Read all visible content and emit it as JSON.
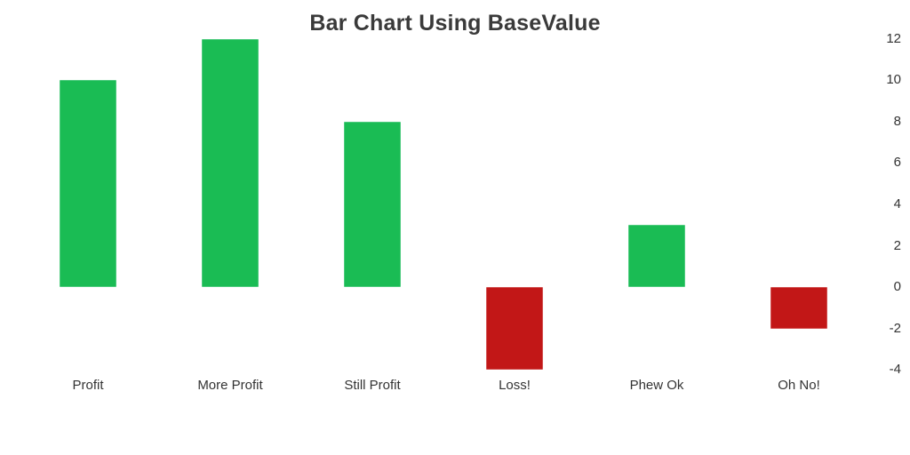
{
  "chart_data": {
    "type": "bar",
    "title": "Bar Chart Using BaseValue",
    "categories": [
      "Profit",
      "More Profit",
      "Still Profit",
      "Loss!",
      "Phew Ok",
      "Oh No!"
    ],
    "values": [
      10,
      12,
      8,
      -4,
      3,
      -2
    ],
    "base_value": 0,
    "xlabel": "",
    "ylabel": "",
    "y_ticks": [
      12,
      10,
      8,
      6,
      4,
      2,
      0,
      -2,
      -4
    ],
    "ylim": [
      -4.6,
      12.6
    ],
    "y_axis_side": "right",
    "grid": false,
    "legend": "none",
    "colors": {
      "positive": "#1abc54",
      "positive_border": "#4ecb7e",
      "negative": "#c21717",
      "negative_border": "#d15050",
      "text": "#333333",
      "title_text": "#3a3a3a",
      "background": "#ffffff"
    }
  }
}
